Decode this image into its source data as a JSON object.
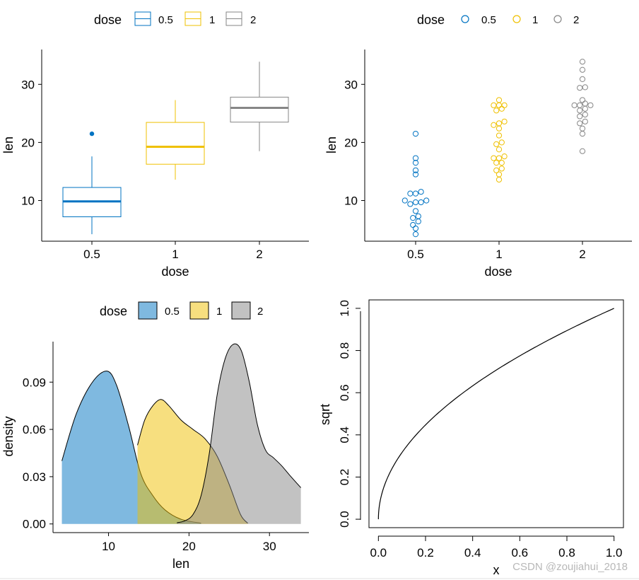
{
  "colors": {
    "0.5": "#0073C2",
    "1": "#EFC000",
    "2": "#868686"
  },
  "watermark": "CSDN @zoujiahui_2018",
  "chart_data": [
    {
      "id": "boxplot",
      "type": "box",
      "legend_title": "dose",
      "legend": [
        "0.5",
        "1",
        "2"
      ],
      "categories": [
        "0.5",
        "1",
        "2"
      ],
      "xlabel": "dose",
      "ylabel": "len",
      "ylim": [
        3,
        36
      ],
      "yticks": [
        10,
        20,
        30
      ],
      "boxes": [
        {
          "dose": "0.5",
          "min": 4.2,
          "q1": 7.2,
          "median": 9.85,
          "q3": 12.25,
          "max": 17.6,
          "outliers": [
            21.5
          ]
        },
        {
          "dose": "1",
          "min": 13.6,
          "q1": 16.25,
          "median": 19.25,
          "q3": 23.45,
          "max": 27.3,
          "outliers": []
        },
        {
          "dose": "2",
          "min": 18.5,
          "q1": 23.5,
          "median": 25.95,
          "q3": 27.8,
          "max": 33.9,
          "outliers": []
        }
      ]
    },
    {
      "id": "dotplot",
      "type": "scatter",
      "legend_title": "dose",
      "legend": [
        "0.5",
        "1",
        "2"
      ],
      "categories": [
        "0.5",
        "1",
        "2"
      ],
      "xlabel": "dose",
      "ylabel": "len",
      "ylim": [
        3,
        36
      ],
      "yticks": [
        10,
        20,
        30
      ],
      "series": [
        {
          "name": "0.5",
          "values": [
            4.2,
            5.2,
            5.8,
            6.4,
            7.0,
            7.3,
            10.0,
            11.2,
            11.2,
            11.5,
            8.2,
            9.4,
            9.7,
            9.7,
            10.0,
            14.5,
            15.2,
            16.5,
            17.3,
            21.5
          ]
        },
        {
          "name": "1",
          "values": [
            13.6,
            14.5,
            15.2,
            15.5,
            16.5,
            16.5,
            17.3,
            17.3,
            17.6,
            18.8,
            19.7,
            20.0,
            21.2,
            22.4,
            23.0,
            23.3,
            23.6,
            25.5,
            25.8,
            26.4,
            26.4,
            26.4,
            27.3
          ]
        },
        {
          "name": "2",
          "values": [
            18.5,
            21.5,
            22.4,
            23.3,
            23.6,
            24.5,
            24.8,
            25.5,
            26.4,
            25.8,
            26.4,
            26.7,
            26.4,
            27.3,
            29.4,
            29.5,
            30.9,
            32.5,
            33.9
          ]
        }
      ]
    },
    {
      "id": "density",
      "type": "area",
      "legend_title": "dose",
      "legend": [
        "0.5",
        "1",
        "2"
      ],
      "xlabel": "len",
      "ylabel": "density",
      "xlim": [
        3.1,
        34.9
      ],
      "ylim": [
        -0.0055,
        0.1157
      ],
      "xticks": [
        10,
        20,
        30
      ],
      "yticks": [
        "0.00",
        "0.03",
        "0.06",
        "0.09"
      ],
      "ytick_values": [
        0,
        0.03,
        0.06,
        0.09
      ],
      "series": [
        {
          "name": "0.5",
          "x": [
            4.2,
            6,
            8,
            9.8,
            11,
            12.5,
            14,
            15.5,
            17,
            19,
            21.5
          ],
          "y": [
            0.04,
            0.07,
            0.09,
            0.097,
            0.088,
            0.062,
            0.032,
            0.018,
            0.009,
            0.003,
            0.0005
          ]
        },
        {
          "name": "1",
          "x": [
            13.6,
            14.5,
            15.5,
            16.5,
            17.5,
            19,
            20.5,
            22,
            23.5,
            25,
            26.4,
            27.3
          ],
          "y": [
            0.05,
            0.066,
            0.075,
            0.079,
            0.075,
            0.066,
            0.06,
            0.054,
            0.043,
            0.025,
            0.006,
            0.0005
          ]
        },
        {
          "name": "2",
          "x": [
            18.5,
            19.5,
            20.5,
            21.5,
            22.5,
            23.5,
            24.5,
            25.5,
            26.5,
            27.5,
            28.5,
            29.5,
            30.5,
            31.5,
            32.5,
            33.9
          ],
          "y": [
            0.0008,
            0.002,
            0.006,
            0.018,
            0.044,
            0.082,
            0.105,
            0.114,
            0.11,
            0.09,
            0.063,
            0.047,
            0.042,
            0.037,
            0.031,
            0.023
          ]
        }
      ]
    },
    {
      "id": "sqrt",
      "type": "line",
      "function": "sqrt",
      "xlabel": "x",
      "ylabel": "sqrt",
      "xlim": [
        -0.04,
        1.04
      ],
      "ylim": [
        -0.04,
        1.04
      ],
      "xticks": [
        "0.0",
        "0.2",
        "0.4",
        "0.6",
        "0.8",
        "1.0"
      ],
      "yticks": [
        "0.0",
        "0.2",
        "0.4",
        "0.6",
        "0.8",
        "1.0"
      ],
      "tick_values": [
        0,
        0.2,
        0.4,
        0.6,
        0.8,
        1.0
      ]
    }
  ]
}
